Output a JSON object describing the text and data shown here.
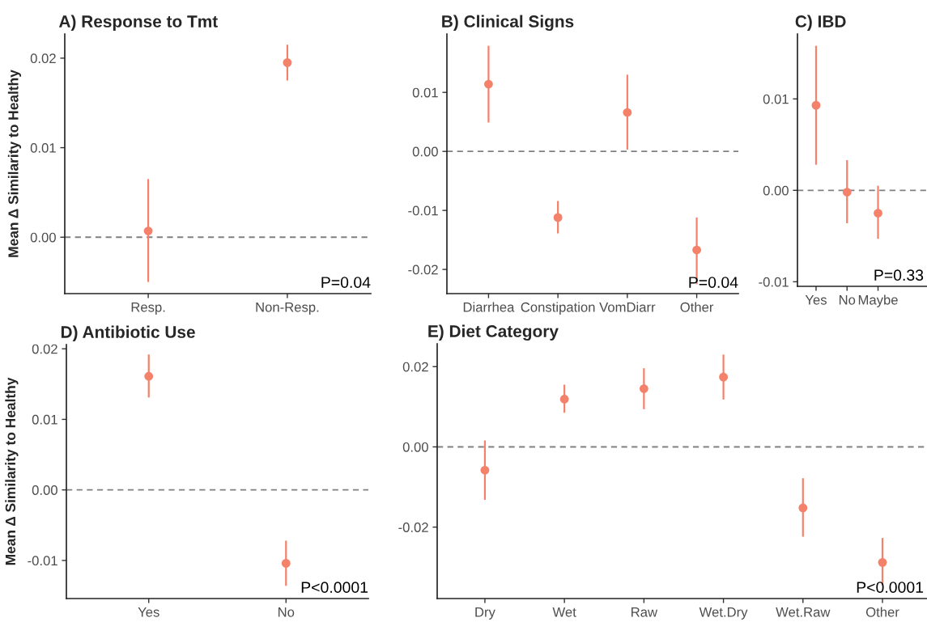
{
  "chart_data": [
    {
      "type": "scatter",
      "title": "A) Response to Tmt",
      "ylabel": "Mean Δ Similarity to Healthy",
      "categories": [
        "Resp.",
        "Non-Resp."
      ],
      "series": [
        {
          "color": "#f4826b",
          "values": [
            0.0007,
            0.0195
          ],
          "errors": [
            [
              -0.005,
              0.0065
            ],
            [
              0.0175,
              0.0215
            ]
          ]
        }
      ],
      "ylim": [
        -0.0063,
        0.0227
      ],
      "yticks": [
        {
          "value": 0,
          "label": "0.00"
        },
        {
          "value": 0.01,
          "label": "0.01"
        },
        {
          "value": 0.02,
          "label": "0.02"
        }
      ],
      "ref_lines": [
        {
          "axis": "y",
          "value": 0,
          "color": "#808080",
          "line_style": "dashed"
        }
      ],
      "annotations": [
        "P=0.04"
      ],
      "grid": false,
      "marker": "circle"
    },
    {
      "type": "scatter",
      "title": "B) Clinical Signs",
      "categories": [
        "Diarrhea",
        "Constipation",
        "VomDiarr",
        "Other"
      ],
      "series": [
        {
          "color": "#f4826b",
          "values": [
            0.0114,
            -0.0112,
            0.0066,
            -0.0167
          ],
          "errors": [
            [
              0.0049,
              0.0179
            ],
            [
              -0.0139,
              -0.0084
            ],
            [
              0.0003,
              0.013
            ],
            [
              -0.0225,
              -0.0112
            ]
          ]
        }
      ],
      "ylim": [
        -0.0241,
        0.0199
      ],
      "yticks": [
        {
          "value": -0.02,
          "label": "-0.02"
        },
        {
          "value": -0.01,
          "label": "-0.01"
        },
        {
          "value": 0,
          "label": "0.00"
        },
        {
          "value": 0.01,
          "label": "0.01"
        }
      ],
      "ref_lines": [
        {
          "axis": "y",
          "value": 0,
          "color": "#808080",
          "line_style": "dashed"
        }
      ],
      "annotations": [
        "P=0.04"
      ],
      "grid": false,
      "marker": "circle"
    },
    {
      "type": "scatter",
      "title": "C) IBD",
      "categories": [
        "Yes",
        "No",
        "Maybe"
      ],
      "series": [
        {
          "color": "#f4826b",
          "values": [
            0.0093,
            -0.0002,
            -0.0025
          ],
          "errors": [
            [
              0.0028,
              0.0158
            ],
            [
              -0.0036,
              0.0033
            ],
            [
              -0.0053,
              0.0005
            ]
          ]
        }
      ],
      "ylim": [
        -0.0105,
        0.0171
      ],
      "yticks": [
        {
          "value": -0.01,
          "label": "-0.01"
        },
        {
          "value": 0,
          "label": "0.00"
        },
        {
          "value": 0.01,
          "label": "0.01"
        }
      ],
      "ref_lines": [
        {
          "axis": "y",
          "value": 0,
          "color": "#808080",
          "line_style": "dashed"
        }
      ],
      "annotations": [
        "P=0.33"
      ],
      "grid": false,
      "marker": "circle"
    },
    {
      "type": "scatter",
      "title": "D) Antibiotic Use",
      "ylabel": "Mean Δ Similarity to Healthy",
      "categories": [
        "Yes",
        "No"
      ],
      "series": [
        {
          "color": "#f4826b",
          "values": [
            0.0161,
            -0.0104
          ],
          "errors": [
            [
              0.0131,
              0.0192
            ],
            [
              -0.0136,
              -0.0072
            ]
          ]
        }
      ],
      "ylim": [
        -0.0154,
        0.0206
      ],
      "yticks": [
        {
          "value": -0.01,
          "label": "-0.01"
        },
        {
          "value": 0,
          "label": "0.00"
        },
        {
          "value": 0.01,
          "label": "0.01"
        },
        {
          "value": 0.02,
          "label": "0.02"
        }
      ],
      "ref_lines": [
        {
          "axis": "y",
          "value": 0,
          "color": "#808080",
          "line_style": "dashed"
        }
      ],
      "annotations": [
        "P<0.0001"
      ],
      "grid": false,
      "marker": "circle"
    },
    {
      "type": "scatter",
      "title": "E) Diet Category",
      "categories": [
        "Dry",
        "Wet",
        "Raw",
        "Wet.Dry",
        "Wet.Raw",
        "Other"
      ],
      "series": [
        {
          "color": "#f4826b",
          "values": [
            -0.0058,
            0.0119,
            0.0145,
            0.0174,
            -0.0152,
            -0.0288
          ],
          "errors": [
            [
              -0.0132,
              0.0016
            ],
            [
              0.0085,
              0.0155
            ],
            [
              0.0094,
              0.0196
            ],
            [
              0.0118,
              0.023
            ],
            [
              -0.0224,
              -0.0078
            ],
            [
              -0.0345,
              -0.0227
            ]
          ]
        }
      ],
      "ylim": [
        -0.0378,
        0.0257
      ],
      "yticks": [
        {
          "value": -0.02,
          "label": "-0.02"
        },
        {
          "value": 0,
          "label": "0.00"
        },
        {
          "value": 0.02,
          "label": "0.02"
        }
      ],
      "ref_lines": [
        {
          "axis": "y",
          "value": 0,
          "color": "#808080",
          "line_style": "dashed"
        }
      ],
      "annotations": [
        "P<0.0001"
      ],
      "grid": false,
      "marker": "circle"
    }
  ]
}
